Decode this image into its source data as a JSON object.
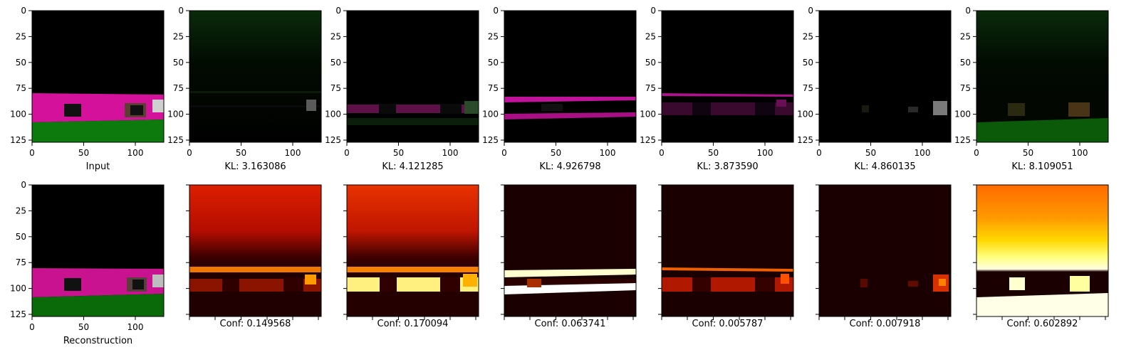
{
  "figure": {
    "background": "#ffffff"
  },
  "chart_data": [
    {
      "type": "heatmap",
      "row": "top",
      "image": "rgb",
      "caption": "Input",
      "xlim": [
        0,
        127
      ],
      "ylim": [
        0,
        127
      ],
      "xticks": [
        "0",
        "50",
        "100"
      ],
      "yticks": [
        "0",
        "25",
        "50",
        "75",
        "100",
        "125"
      ],
      "show_tick_labels": true
    },
    {
      "type": "heatmap",
      "row": "top",
      "image": "rgb",
      "caption": "KL: 3.163086",
      "kl": 3.163086,
      "xticks": [
        "0",
        "50",
        "100"
      ],
      "yticks": [
        "0",
        "25",
        "50",
        "75",
        "100",
        "125"
      ],
      "show_tick_labels": true
    },
    {
      "type": "heatmap",
      "row": "top",
      "image": "rgb",
      "caption": "KL: 4.121285",
      "kl": 4.121285,
      "xticks": [
        "0",
        "50",
        "100"
      ],
      "yticks": [
        "0",
        "25",
        "50",
        "75",
        "100",
        "125"
      ],
      "show_tick_labels": true
    },
    {
      "type": "heatmap",
      "row": "top",
      "image": "rgb",
      "caption": "KL: 4.926798",
      "kl": 4.926798,
      "xticks": [
        "0",
        "50",
        "100"
      ],
      "yticks": [
        "0",
        "25",
        "50",
        "75",
        "100",
        "125"
      ],
      "show_tick_labels": true
    },
    {
      "type": "heatmap",
      "row": "top",
      "image": "rgb",
      "caption": "KL: 3.873590",
      "kl": 3.87359,
      "xticks": [
        "0",
        "50",
        "100"
      ],
      "yticks": [
        "0",
        "25",
        "50",
        "75",
        "100",
        "125"
      ],
      "show_tick_labels": true
    },
    {
      "type": "heatmap",
      "row": "top",
      "image": "rgb",
      "caption": "KL: 4.860135",
      "kl": 4.860135,
      "xticks": [
        "0",
        "50",
        "100"
      ],
      "yticks": [
        "0",
        "25",
        "50",
        "75",
        "100",
        "125"
      ],
      "show_tick_labels": true
    },
    {
      "type": "heatmap",
      "row": "top",
      "image": "rgb",
      "caption": "KL: 8.109051",
      "kl": 8.109051,
      "xticks": [
        "0",
        "50",
        "100"
      ],
      "yticks": [
        "0",
        "25",
        "50",
        "75",
        "100",
        "125"
      ],
      "show_tick_labels": true
    },
    {
      "type": "heatmap",
      "row": "bottom",
      "image": "rgb",
      "caption": "Reconstruction",
      "xticks": [
        "0",
        "50",
        "100"
      ],
      "yticks": [
        "0",
        "25",
        "50",
        "75",
        "100",
        "125"
      ],
      "show_tick_labels": true
    },
    {
      "type": "heatmap",
      "row": "bottom",
      "colormap": "hot",
      "caption": "Conf: 0.149568",
      "conf": 0.149568,
      "show_tick_labels": false
    },
    {
      "type": "heatmap",
      "row": "bottom",
      "colormap": "hot",
      "caption": "Conf: 0.170094",
      "conf": 0.170094,
      "show_tick_labels": false
    },
    {
      "type": "heatmap",
      "row": "bottom",
      "colormap": "hot",
      "caption": "Conf: 0.063741",
      "conf": 0.063741,
      "show_tick_labels": false
    },
    {
      "type": "heatmap",
      "row": "bottom",
      "colormap": "hot",
      "caption": "Conf: 0.005787",
      "conf": 0.005787,
      "show_tick_labels": false
    },
    {
      "type": "heatmap",
      "row": "bottom",
      "colormap": "hot",
      "caption": "Conf: 0.007918",
      "conf": 0.007918,
      "show_tick_labels": false
    },
    {
      "type": "heatmap",
      "row": "bottom",
      "colormap": "hot",
      "caption": "Conf: 0.602892",
      "conf": 0.602892,
      "show_tick_labels": false
    }
  ]
}
